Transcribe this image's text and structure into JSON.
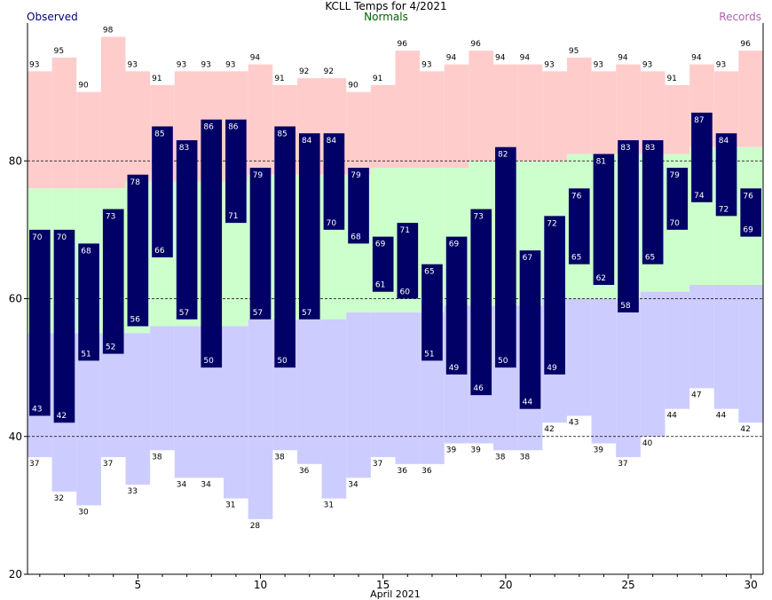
{
  "chart_data": {
    "type": "bar",
    "title": "KCLL Temps for 4/2021",
    "xlabel": "April 2021",
    "legend": {
      "observed": "Observed",
      "normals": "Normals",
      "records": "Records"
    },
    "colors": {
      "observed": "#000066",
      "normal_band": "#ccffcc",
      "record_high_band": "#ffcccc",
      "record_low_band": "#ccccff",
      "obs_label": "#ffffff"
    },
    "xlim": [
      1,
      30
    ],
    "xticks": [
      5,
      10,
      15,
      20,
      25,
      30
    ],
    "ylim": [
      20,
      100
    ],
    "yticks": [
      20,
      40,
      60,
      80
    ],
    "dashed_gridlines": [
      40,
      60,
      80
    ],
    "days": [
      1,
      2,
      3,
      4,
      5,
      6,
      7,
      8,
      9,
      10,
      11,
      12,
      13,
      14,
      15,
      16,
      17,
      18,
      19,
      20,
      21,
      22,
      23,
      24,
      25,
      26,
      27,
      28,
      29,
      30
    ],
    "observed_high": [
      70,
      70,
      68,
      73,
      78,
      85,
      83,
      86,
      86,
      79,
      85,
      84,
      84,
      79,
      69,
      71,
      65,
      69,
      73,
      82,
      67,
      72,
      76,
      81,
      83,
      83,
      79,
      87,
      84,
      76
    ],
    "observed_low": [
      43,
      42,
      51,
      52,
      56,
      66,
      57,
      50,
      71,
      57,
      50,
      57,
      70,
      68,
      61,
      60,
      51,
      49,
      46,
      50,
      44,
      49,
      65,
      62,
      58,
      65,
      70,
      74,
      72,
      69
    ],
    "normal_high": [
      76,
      76,
      76,
      76,
      77,
      77,
      77,
      77,
      77,
      78,
      78,
      78,
      78,
      78,
      79,
      79,
      79,
      79,
      80,
      80,
      80,
      80,
      81,
      81,
      81,
      81,
      81,
      82,
      82,
      82
    ],
    "normal_low": [
      55,
      55,
      55,
      55,
      55,
      56,
      56,
      56,
      56,
      57,
      57,
      57,
      57,
      58,
      58,
      58,
      58,
      59,
      59,
      59,
      59,
      60,
      60,
      60,
      60,
      61,
      61,
      62,
      62,
      62
    ],
    "record_high": [
      93,
      95,
      90,
      98,
      93,
      91,
      93,
      93,
      93,
      94,
      91,
      92,
      92,
      90,
      91,
      96,
      93,
      94,
      96,
      94,
      94,
      93,
      95,
      93,
      94,
      93,
      91,
      94,
      93,
      96
    ],
    "record_low": [
      37,
      32,
      30,
      37,
      33,
      38,
      34,
      34,
      31,
      28,
      38,
      36,
      31,
      34,
      37,
      36,
      36,
      39,
      39,
      38,
      38,
      42,
      43,
      39,
      37,
      40,
      44,
      47,
      44,
      42
    ]
  }
}
